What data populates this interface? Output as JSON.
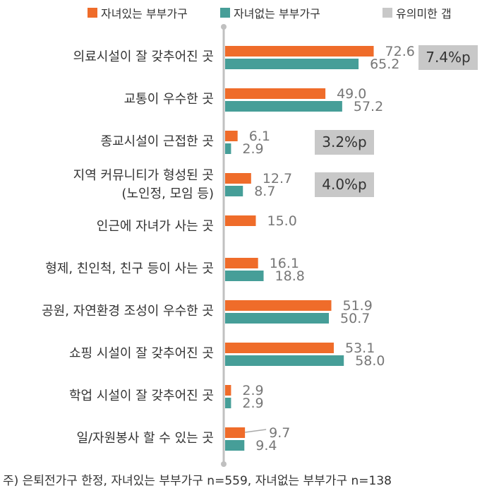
{
  "colors": {
    "with_children": "#ef6c2a",
    "without_children": "#469e98",
    "gap": "#c8c8c8",
    "axis": "#c0c0c0",
    "text": "#333333",
    "value_text": "#777777"
  },
  "legend": {
    "with_children": "자녀있는 부부가구",
    "without_children": "자녀없는 부부가구",
    "gap": "유의미한 갭"
  },
  "note": "주) 은퇴전가구 한정, 자녀있는 부부가구 n=559, 자녀없는 부부가구 n=138",
  "chart_data": {
    "type": "bar",
    "orientation": "horizontal",
    "categories": [
      "의료시설이 잘 갖추어진 곳",
      "교통이 우수한 곳",
      "종교시설이 근접한 곳",
      "지역 커뮤니티가 형성된 곳\n(노인정, 모임 등)",
      "인근에 자녀가 사는 곳",
      "형제, 친인척, 친구 등이 사는 곳",
      "공원, 자연환경 조성이 우수한 곳",
      "쇼핑 시설이 잘 갖추어진 곳",
      "학업 시설이 잘 갖추어진 곳",
      "일/자원봉사 할 수 있는 곳"
    ],
    "series": [
      {
        "name": "자녀있는 부부가구",
        "values": [
          72.6,
          49.0,
          6.1,
          12.7,
          15.0,
          16.1,
          51.9,
          53.1,
          2.9,
          9.7
        ],
        "labels": [
          "72.6",
          "49.0",
          "6.1",
          "12.7",
          "15.0",
          "16.1",
          "51.9",
          "53.1",
          "2.9",
          "9.7"
        ]
      },
      {
        "name": "자녀없는 부부가구",
        "values": [
          65.2,
          57.2,
          2.9,
          8.7,
          null,
          18.8,
          50.7,
          58.0,
          2.9,
          9.4
        ],
        "labels": [
          "65.2",
          "57.2",
          "2.9",
          "8.7",
          "",
          "18.8",
          "50.7",
          "58.0",
          "2.9",
          "9.4"
        ]
      }
    ],
    "annotations": [
      {
        "category_index": 0,
        "text": "7.4%p"
      },
      {
        "category_index": 2,
        "text": "3.2%p"
      },
      {
        "category_index": 3,
        "text": "4.0%p"
      }
    ],
    "xlim": [
      0,
      100
    ],
    "grid": false,
    "legend_position": "top"
  }
}
